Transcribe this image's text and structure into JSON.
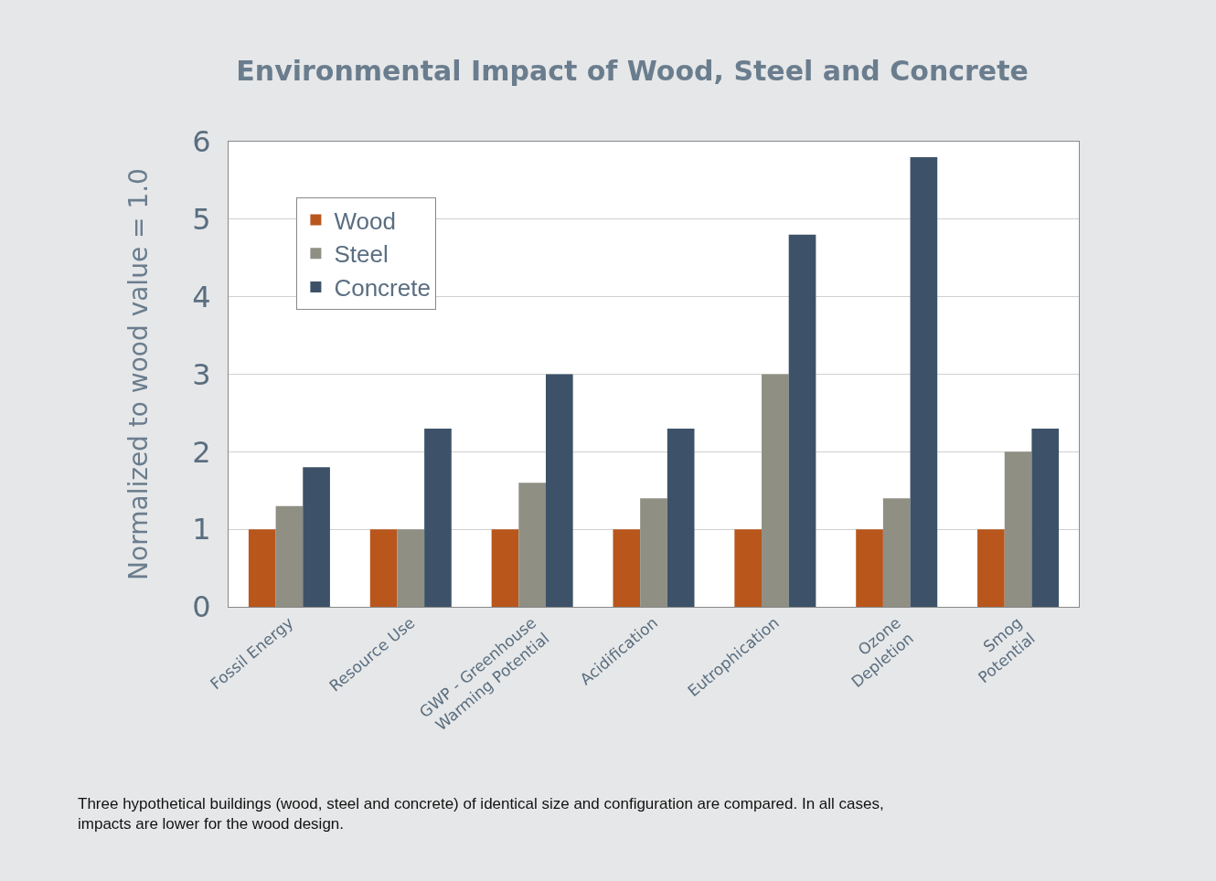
{
  "chart_data": {
    "type": "bar",
    "title": "Environmental Impact of Wood, Steel and Concrete",
    "ylabel": "Normalized to wood value = 1.0",
    "categories": [
      "Fossil Energy",
      "Resource Use",
      "GWP - Greenhouse\nWarming Potential",
      "Acidification",
      "Eutrophication",
      "Ozone\nDepletion",
      "Smog\nPotential"
    ],
    "series": [
      {
        "name": "Wood",
        "color": "#b8561c",
        "values": [
          1,
          1,
          1,
          1,
          1,
          1,
          1
        ]
      },
      {
        "name": "Steel",
        "color": "#8f8f84",
        "values": [
          1.3,
          1,
          1.6,
          1.4,
          3.0,
          1.4,
          2.0
        ]
      },
      {
        "name": "Concrete",
        "color": "#3d5268",
        "values": [
          1.8,
          2.3,
          3.0,
          2.3,
          4.8,
          5.8,
          2.3
        ]
      }
    ],
    "ylim": [
      0,
      6
    ],
    "yticks": [
      0,
      1,
      2,
      3,
      4,
      5,
      6
    ],
    "grid": "y",
    "legend": "top left",
    "annotations": [
      "Three hypothetical buildings (wood, steel and concrete) of identical size and configuration are compared. In all cases,\nimpacts are lower for the wood design."
    ]
  }
}
